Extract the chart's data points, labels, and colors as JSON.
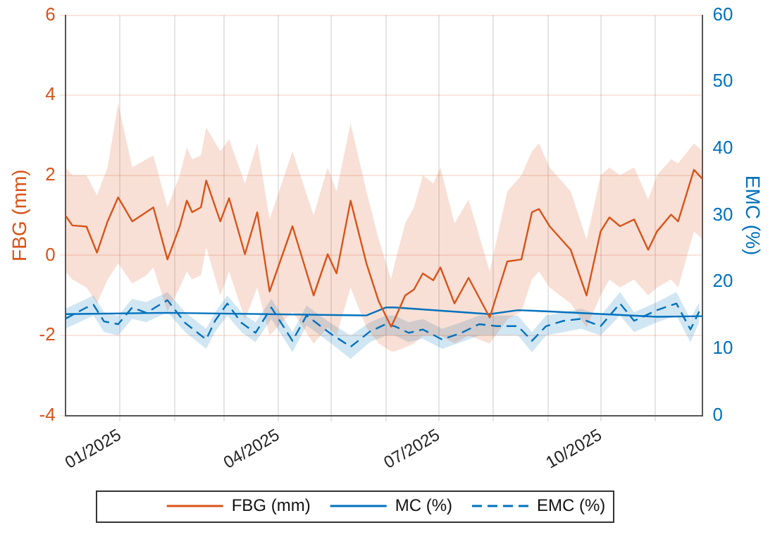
{
  "chart_data": {
    "type": "line",
    "ylabel": "FBG (mm)",
    "y2label": "EMC (%)",
    "xlim": [
      "2024-12-01",
      "2025-11-28"
    ],
    "xticks": [
      {
        "value": "2025-01-01",
        "label": "01/2025"
      },
      {
        "value": "2025-02-01",
        "label": null
      },
      {
        "value": "2025-03-01",
        "label": null
      },
      {
        "value": "2025-04-01",
        "label": "04/2025"
      },
      {
        "value": "2025-05-01",
        "label": null
      },
      {
        "value": "2025-06-01",
        "label": null
      },
      {
        "value": "2025-07-01",
        "label": "07/2025"
      },
      {
        "value": "2025-08-01",
        "label": null
      },
      {
        "value": "2025-09-01",
        "label": null
      },
      {
        "value": "2025-10-01",
        "label": "10/2025"
      },
      {
        "value": "2025-11-01",
        "label": null
      }
    ],
    "ylim": [
      -4,
      6
    ],
    "yticks": [
      -4,
      -2,
      0,
      2,
      4,
      6
    ],
    "y2lim": [
      0,
      60
    ],
    "y2ticks": [
      0,
      10,
      20,
      30,
      40,
      50,
      60
    ],
    "grid": true,
    "legend": "bottom",
    "marker": "none",
    "series": [
      {
        "name": "FBG (mm)",
        "color": "#d95319",
        "line_style": "solid",
        "x": [
          "2024-12-01",
          "2024-12-05",
          "2024-12-13",
          "2024-12-19",
          "2024-12-25",
          "2024-12-31",
          "2025-01-08",
          "2025-01-16",
          "2025-01-20",
          "2025-01-28",
          "2025-02-04",
          "2025-02-08",
          "2025-02-11",
          "2025-02-16",
          "2025-02-19",
          "2025-02-27",
          "2025-03-04",
          "2025-03-13",
          "2025-03-20",
          "2025-03-27",
          "2025-04-09",
          "2025-04-21",
          "2025-04-29",
          "2025-05-04",
          "2025-05-12",
          "2025-05-21",
          "2025-05-28",
          "2025-06-04",
          "2025-06-06",
          "2025-06-12",
          "2025-06-17",
          "2025-06-22",
          "2025-06-28",
          "2025-07-02",
          "2025-07-10",
          "2025-07-18",
          "2025-07-30",
          "2025-08-09",
          "2025-08-17",
          "2025-08-23",
          "2025-08-27",
          "2025-09-02",
          "2025-09-14",
          "2025-09-23",
          "2025-10-01",
          "2025-10-06",
          "2025-10-12",
          "2025-10-20",
          "2025-10-28",
          "2025-11-02",
          "2025-11-10",
          "2025-11-14",
          "2025-11-23",
          "2025-11-28"
        ],
        "values": [
          1.0,
          0.75,
          0.72,
          0.07,
          0.85,
          1.45,
          0.85,
          1.08,
          1.2,
          -0.1,
          0.73,
          1.37,
          1.08,
          1.2,
          1.87,
          0.85,
          1.43,
          0.03,
          1.08,
          -0.9,
          0.73,
          -1.0,
          0.03,
          -0.45,
          1.37,
          -0.2,
          -1.15,
          -1.78,
          -1.6,
          -1.0,
          -0.85,
          -0.45,
          -0.62,
          -0.3,
          -1.2,
          -0.56,
          -1.55,
          -0.15,
          -0.1,
          1.08,
          1.16,
          0.73,
          0.14,
          -1.0,
          0.6,
          0.95,
          0.73,
          0.9,
          0.14,
          0.6,
          1.02,
          0.85,
          2.14,
          1.9
        ],
        "lower": [
          -0.4,
          -0.6,
          -0.8,
          -1.2,
          -0.6,
          -0.2,
          -0.7,
          -0.5,
          -0.3,
          -1.4,
          -0.8,
          -0.4,
          -0.6,
          -0.5,
          0.2,
          -1.0,
          -0.4,
          -1.6,
          -0.8,
          -2.0,
          -1.4,
          -2.2,
          -1.8,
          -2.0,
          -0.8,
          -1.8,
          -2.2,
          -2.4,
          -2.4,
          -2.3,
          -2.2,
          -2.0,
          -2.0,
          -2.0,
          -2.2,
          -2.0,
          -2.2,
          -1.6,
          -1.4,
          -0.6,
          -0.4,
          -0.8,
          -1.2,
          -1.8,
          -1.0,
          -0.6,
          -0.8,
          -0.6,
          -1.0,
          -0.8,
          -0.6,
          -0.8,
          0.6,
          0.4
        ],
        "upper": [
          2.2,
          2.0,
          2.0,
          1.5,
          2.2,
          3.8,
          2.2,
          2.4,
          2.5,
          1.2,
          2.0,
          2.7,
          2.4,
          2.5,
          3.2,
          2.6,
          2.9,
          1.8,
          2.8,
          0.9,
          2.6,
          1.0,
          2.2,
          1.6,
          3.3,
          1.6,
          0.4,
          -0.6,
          -0.2,
          0.8,
          1.2,
          2.0,
          1.8,
          2.2,
          0.8,
          1.4,
          -0.4,
          1.6,
          2.0,
          2.6,
          2.8,
          2.2,
          1.6,
          0.4,
          2.0,
          2.2,
          2.0,
          2.2,
          1.4,
          2.0,
          2.4,
          2.3,
          2.8,
          2.6
        ]
      },
      {
        "name": "MC (%)",
        "color": "#0072bd",
        "axis": "y2",
        "line_style": "solid",
        "x": [
          "2024-12-01",
          "2025-01-28",
          "2025-05-21",
          "2025-06-01",
          "2025-06-06",
          "2025-07-30",
          "2025-08-15",
          "2025-09-02",
          "2025-11-02",
          "2025-11-28"
        ],
        "values": [
          15.2,
          15.4,
          15.0,
          16.2,
          16.2,
          15.2,
          15.8,
          15.6,
          14.8,
          14.9
        ]
      },
      {
        "name": "EMC (%)",
        "color": "#0072bd",
        "axis": "y2",
        "line_style": "dashed",
        "x": [
          "2024-12-01",
          "2024-12-13",
          "2024-12-17",
          "2024-12-23",
          "2024-12-31",
          "2025-01-08",
          "2025-01-16",
          "2025-01-28",
          "2025-02-07",
          "2025-02-19",
          "2025-02-24",
          "2025-03-03",
          "2025-03-11",
          "2025-03-19",
          "2025-03-28",
          "2025-04-09",
          "2025-04-17",
          "2025-04-30",
          "2025-05-12",
          "2025-05-23",
          "2025-06-01",
          "2025-06-06",
          "2025-06-14",
          "2025-06-22",
          "2025-07-03",
          "2025-07-14",
          "2025-07-24",
          "2025-08-03",
          "2025-08-15",
          "2025-08-23",
          "2025-08-31",
          "2025-09-10",
          "2025-09-20",
          "2025-10-01",
          "2025-10-12",
          "2025-10-20",
          "2025-11-02",
          "2025-11-13",
          "2025-11-21",
          "2025-11-26"
        ],
        "values": [
          14.5,
          16.2,
          16.6,
          14.1,
          13.7,
          16.2,
          15.4,
          17.3,
          13.9,
          11.4,
          14.2,
          16.8,
          13.9,
          12.4,
          16.2,
          11.2,
          15.0,
          12.4,
          10.3,
          12.6,
          13.7,
          13.4,
          12.4,
          12.9,
          11.4,
          12.4,
          13.7,
          13.4,
          13.4,
          11.2,
          13.4,
          14.2,
          14.5,
          13.4,
          16.8,
          14.2,
          15.8,
          16.8,
          12.9,
          15.6
        ],
        "lower": [
          13,
          14.5,
          15,
          12.5,
          12,
          14.5,
          14,
          15.5,
          12.5,
          10,
          12.5,
          15,
          12.5,
          11,
          14.5,
          9.5,
          13.5,
          11,
          8.5,
          11,
          12,
          12,
          11,
          11.5,
          10,
          11,
          12,
          12,
          12,
          9.5,
          12,
          12.5,
          13,
          12,
          15,
          12.5,
          14,
          15,
          11,
          14
        ],
        "upper": [
          16,
          17.5,
          18,
          15.5,
          15,
          17.5,
          17,
          18.5,
          15.5,
          13,
          15.5,
          18,
          15.5,
          14,
          17.5,
          12.5,
          16.5,
          14,
          12,
          14,
          15,
          15,
          14,
          14.5,
          13,
          14,
          15,
          15,
          15,
          12.5,
          15,
          15.5,
          16,
          15,
          18.5,
          15.5,
          17,
          18.5,
          14.5,
          17
        ]
      }
    ]
  }
}
